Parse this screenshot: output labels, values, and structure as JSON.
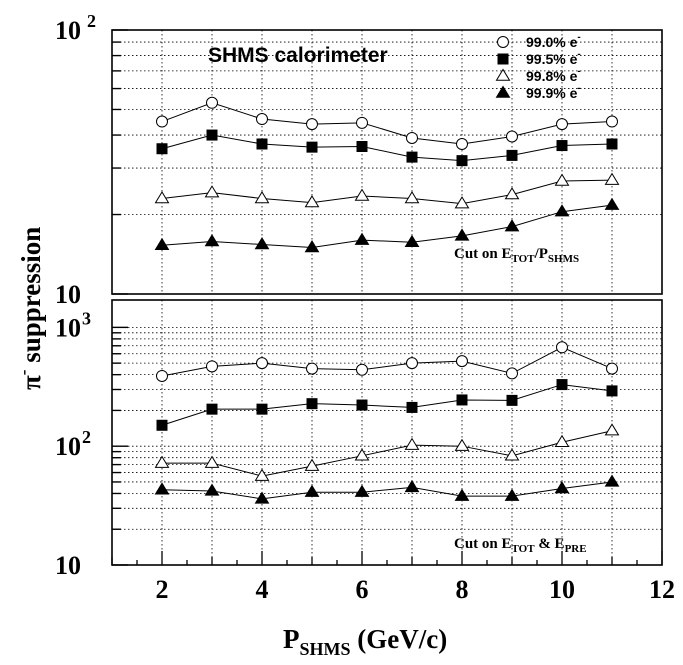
{
  "chart_data": [
    {
      "type": "line",
      "title": "SHMS  calorimeter",
      "annotation": {
        "main": "Cut on  E",
        "sub1": "TOT",
        "mid": "/P",
        "sub2": "SHMS"
      },
      "ylim": [
        10,
        100
      ],
      "yscale": "log",
      "yticks": [
        {
          "value": 10,
          "base": "10",
          "exp": ""
        },
        {
          "value": 100,
          "base": "10",
          "exp": "2"
        }
      ],
      "xlim": [
        1,
        12
      ],
      "grid": true,
      "legend_position": "top-right",
      "x": [
        2,
        3,
        4,
        5,
        6,
        7,
        8,
        9,
        10,
        11
      ],
      "series": [
        {
          "name": "99.0% e",
          "marker": "circle-open",
          "values": [
            45,
            53,
            46,
            44,
            44.5,
            39,
            37,
            39.5,
            44,
            45
          ]
        },
        {
          "name": "99.5% e",
          "marker": "square-filled",
          "values": [
            35.5,
            40,
            37,
            36,
            36.2,
            33,
            32,
            33.5,
            36.5,
            37
          ]
        },
        {
          "name": "99.8% e",
          "marker": "triangle-open",
          "values": [
            23,
            24.2,
            23,
            22.2,
            23.5,
            23,
            22,
            23.8,
            26.8,
            27
          ]
        },
        {
          "name": "99.9% e",
          "marker": "triangle-filled",
          "values": [
            15.3,
            15.8,
            15.4,
            15,
            16,
            15.7,
            16.6,
            18,
            20.5,
            21.7
          ]
        }
      ]
    },
    {
      "type": "line",
      "annotation": {
        "main": "Cut on  E",
        "sub1": "TOT",
        "mid": " & E",
        "sub2": "PRE"
      },
      "ylim": [
        10,
        1700
      ],
      "yscale": "log",
      "yticks": [
        {
          "value": 10,
          "base": "10",
          "exp": ""
        },
        {
          "value": 100,
          "base": "10",
          "exp": "2"
        },
        {
          "value": 1000,
          "base": "10",
          "exp": "3"
        }
      ],
      "xlim": [
        1,
        12
      ],
      "xticks": [
        2,
        4,
        6,
        8,
        10,
        12
      ],
      "grid": true,
      "x": [
        2,
        3,
        4,
        5,
        6,
        7,
        8,
        9,
        10,
        11
      ],
      "series": [
        {
          "marker": "circle-open",
          "values": [
            390,
            470,
            500,
            450,
            440,
            500,
            520,
            410,
            680,
            450
          ]
        },
        {
          "marker": "square-filled",
          "values": [
            150,
            205,
            205,
            228,
            222,
            212,
            245,
            243,
            330,
            292
          ]
        },
        {
          "marker": "triangle-open",
          "values": [
            72,
            72,
            56,
            68,
            83,
            102,
            100,
            83,
            108,
            135
          ]
        },
        {
          "marker": "triangle-filled",
          "values": [
            43,
            42,
            36,
            41,
            41,
            45,
            38,
            38,
            44,
            50
          ]
        }
      ]
    }
  ],
  "axes": {
    "ylabel": {
      "main": "π",
      "sup": "-",
      "rest": " suppression"
    },
    "xlabel": {
      "main": "P",
      "sub": "SHMS",
      "rest": " (GeV/c)"
    }
  }
}
